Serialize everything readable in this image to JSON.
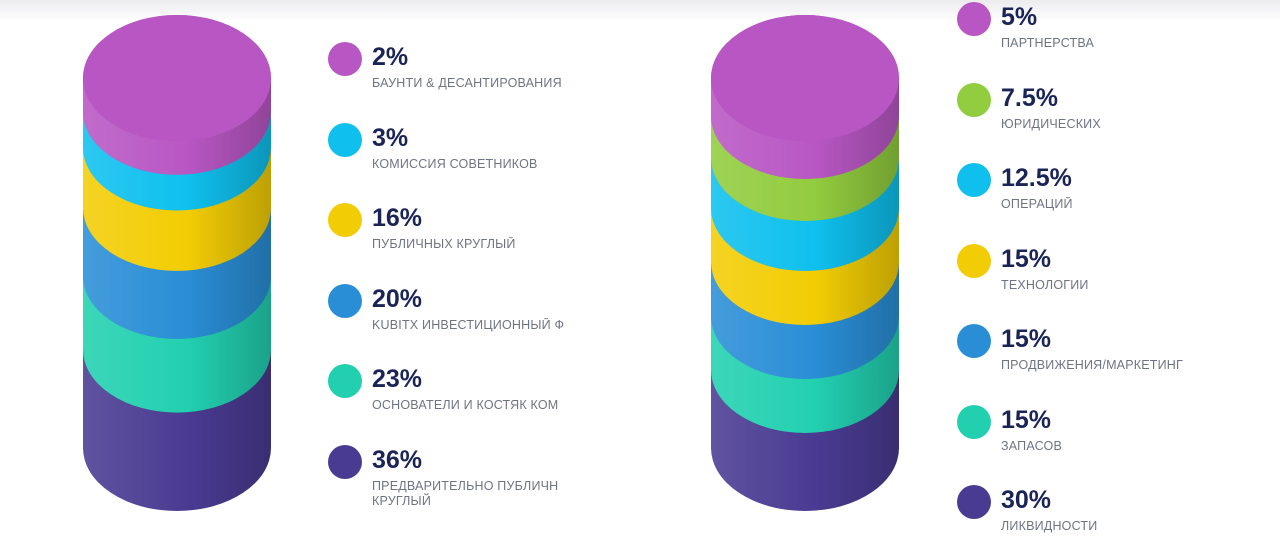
{
  "colors": {
    "purple": "#b857c4",
    "cyan": "#0fc0ee",
    "yellow": "#f2cd05",
    "blue": "#2a8ed6",
    "teal": "#22d0b0",
    "indigo": "#4a3b92",
    "green": "#92cc3f"
  },
  "chart_data": [
    {
      "type": "stacked-cylinder",
      "segments": [
        {
          "label": "Баунти & Десантирования",
          "value": 2,
          "percent": "2%",
          "color": "#b857c4"
        },
        {
          "label": "Комиссия советников",
          "value": 3,
          "percent": "3%",
          "color": "#0fc0ee"
        },
        {
          "label": "Публичных круглый",
          "value": 16,
          "percent": "16%",
          "color": "#f2cd05"
        },
        {
          "label": "Kubitx Инвестиционный ф",
          "value": 20,
          "percent": "20%",
          "color": "#2a8ed6"
        },
        {
          "label": "Основатели и костяк ком",
          "value": 23,
          "percent": "23%",
          "color": "#22d0b0"
        },
        {
          "label": "Предварительно публичн круглый",
          "value": 36,
          "percent": "36%",
          "color": "#4a3b92"
        }
      ]
    },
    {
      "type": "stacked-cylinder",
      "segments": [
        {
          "label": "Партнерства",
          "value": 5,
          "percent": "5%",
          "color": "#b857c4"
        },
        {
          "label": "Юридических",
          "value": 7.5,
          "percent": "7.5%",
          "color": "#92cc3f"
        },
        {
          "label": "Операций",
          "value": 12.5,
          "percent": "12.5%",
          "color": "#0fc0ee"
        },
        {
          "label": "Технологии",
          "value": 15,
          "percent": "15%",
          "color": "#f2cd05"
        },
        {
          "label": "Продвижения/маркетинг",
          "value": 15,
          "percent": "15%",
          "color": "#2a8ed6"
        },
        {
          "label": "Запасов",
          "value": 15,
          "percent": "15%",
          "color": "#22d0b0"
        },
        {
          "label": "Ликвидности",
          "value": 30,
          "percent": "30%",
          "color": "#4a3b92"
        }
      ]
    }
  ]
}
